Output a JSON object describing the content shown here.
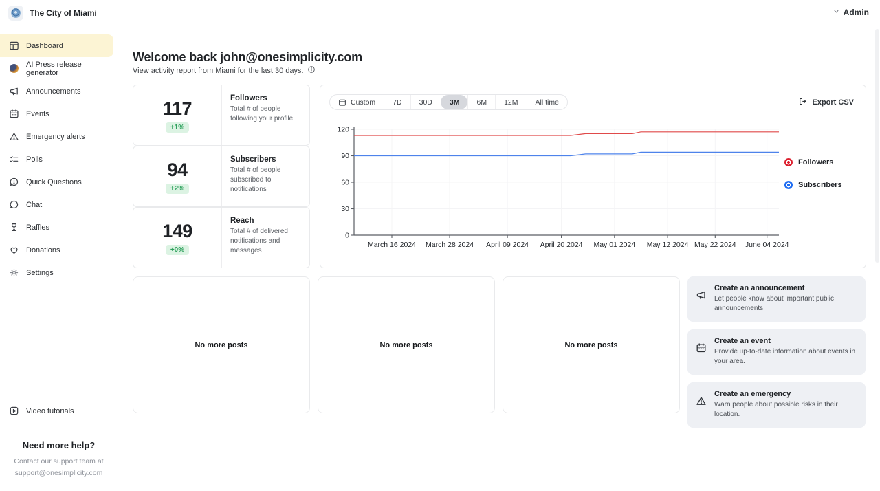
{
  "brand": {
    "name": "The City of Miami"
  },
  "header": {
    "user_menu_label": "Admin"
  },
  "sidebar": {
    "items": [
      {
        "label": "Dashboard",
        "icon": "dashboard-icon",
        "active": true
      },
      {
        "label": "AI Press release generator",
        "icon": "ai-icon",
        "active": false
      },
      {
        "label": "Announcements",
        "icon": "megaphone-icon",
        "active": false
      },
      {
        "label": "Events",
        "icon": "calendar-icon",
        "active": false
      },
      {
        "label": "Emergency alerts",
        "icon": "warning-icon",
        "active": false
      },
      {
        "label": "Polls",
        "icon": "checklist-icon",
        "active": false
      },
      {
        "label": "Quick Questions",
        "icon": "question-bubble-icon",
        "active": false
      },
      {
        "label": "Chat",
        "icon": "chat-bubble-icon",
        "active": false
      },
      {
        "label": "Raffles",
        "icon": "goblet-icon",
        "active": false
      },
      {
        "label": "Donations",
        "icon": "heart-icon",
        "active": false
      },
      {
        "label": "Settings",
        "icon": "gear-icon",
        "active": false
      }
    ],
    "footer": {
      "video_tutorials_label": "Video tutorials",
      "help_title": "Need more help?",
      "help_line1": "Contact our support team at",
      "help_line2": "support@onesimplicity.com"
    }
  },
  "main": {
    "welcome_title": "Welcome back john@onesimplicity.com",
    "welcome_subtitle": "View activity report from Miami for the last 30 days.",
    "stats": [
      {
        "value": "117",
        "change": "+1%",
        "title": "Followers",
        "description": "Total # of people following your profile"
      },
      {
        "value": "94",
        "change": "+2%",
        "title": "Subscribers",
        "description": "Total # of people subscribed to notifications"
      },
      {
        "value": "149",
        "change": "+0%",
        "title": "Reach",
        "description": "Total # of delivered notifications and messages"
      }
    ],
    "chart_controls": {
      "ranges": [
        "Custom",
        "7D",
        "30D",
        "3M",
        "6M",
        "12M",
        "All time"
      ],
      "selected_range": "3M",
      "export_label": "Export CSV"
    },
    "posts": {
      "empty_text": "No more posts"
    },
    "actions": [
      {
        "title": "Create an announcement",
        "description": "Let people know about important public announcements.",
        "icon": "megaphone-icon"
      },
      {
        "title": "Create an event",
        "description": "Provide up-to-date information about events in your area.",
        "icon": "calendar-icon"
      },
      {
        "title": "Create an emergency",
        "description": "Warn people about possible risks in their location.",
        "icon": "warning-icon"
      }
    ]
  },
  "chart_data": {
    "type": "line",
    "title": "",
    "xlabel": "",
    "ylabel": "",
    "ylim": [
      0,
      120
    ],
    "y_ticks": [
      0,
      30,
      60,
      90,
      120
    ],
    "x_ticks": [
      "March 16 2024",
      "March 28 2024",
      "April 09 2024",
      "April 20 2024",
      "May 01 2024",
      "May 12 2024",
      "May 22 2024",
      "June 04 2024"
    ],
    "x_tick_positions": [
      0.089,
      0.225,
      0.361,
      0.488,
      0.613,
      0.738,
      0.85,
      0.972
    ],
    "grid": true,
    "legend_position": "right",
    "series": [
      {
        "name": "Followers",
        "color": "#e04a4a",
        "legend_color": "#dc1f2e",
        "points": [
          [
            0,
            113
          ],
          [
            0.51,
            113
          ],
          [
            0.545,
            115
          ],
          [
            0.655,
            115
          ],
          [
            0.675,
            117
          ],
          [
            1,
            117
          ]
        ]
      },
      {
        "name": "Subscribers",
        "color": "#4e83eb",
        "legend_color": "#1c6bf2",
        "points": [
          [
            0,
            90
          ],
          [
            0.51,
            90
          ],
          [
            0.545,
            92
          ],
          [
            0.655,
            92
          ],
          [
            0.675,
            94
          ],
          [
            1,
            94
          ]
        ]
      }
    ]
  },
  "colors": {
    "active_nav_bg": "#fcf4d4",
    "badge_green_bg": "#dcf3e3",
    "badge_green_text": "#2da05c",
    "card_border": "#e9eaec",
    "action_card_bg": "#eef0f4",
    "followers_line": "#e04a4a",
    "subscribers_line": "#4e83eb"
  }
}
